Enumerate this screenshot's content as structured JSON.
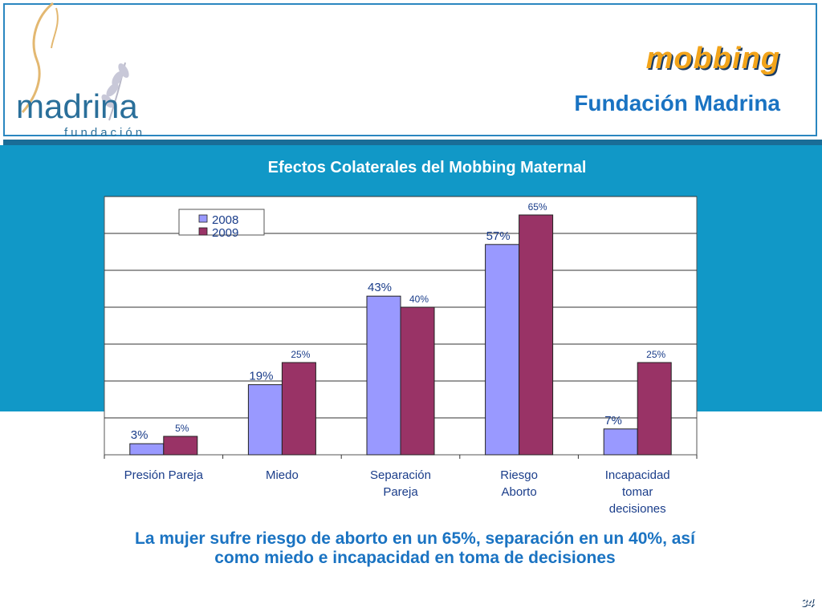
{
  "header": {
    "title": "mobbing",
    "subtitle": "Fundación Madrina",
    "logo_text": "madrina",
    "logo_subtext": "fundación"
  },
  "colors": {
    "band": "#1198c7",
    "series_2008": "#9999ff",
    "series_2009": "#993366",
    "title_orange": "#f2a41a",
    "text_blue": "#1a73c2"
  },
  "chart_data": {
    "type": "bar",
    "title": "Efectos Colaterales del Mobbing Maternal",
    "categories": [
      "Presión Pareja",
      "Miedo",
      "Separación Pareja",
      "Riesgo Aborto",
      "Incapacidad tomar decisiones"
    ],
    "series": [
      {
        "name": "2008",
        "values": [
          3,
          19,
          43,
          57,
          7
        ],
        "labels": [
          "3%",
          "19%",
          "43%",
          "57%",
          "7%"
        ]
      },
      {
        "name": "2009",
        "values": [
          5,
          25,
          40,
          65,
          25
        ],
        "labels": [
          "5%",
          "25%",
          "40%",
          "65%",
          "25%"
        ]
      }
    ],
    "ylim": [
      0,
      70
    ],
    "grid": true,
    "legend": "top-left"
  },
  "caption": "La mujer sufre riesgo de aborto en un 65%, separación en un 40%, así como miedo e incapacidad en toma de decisiones",
  "page_number": "34"
}
